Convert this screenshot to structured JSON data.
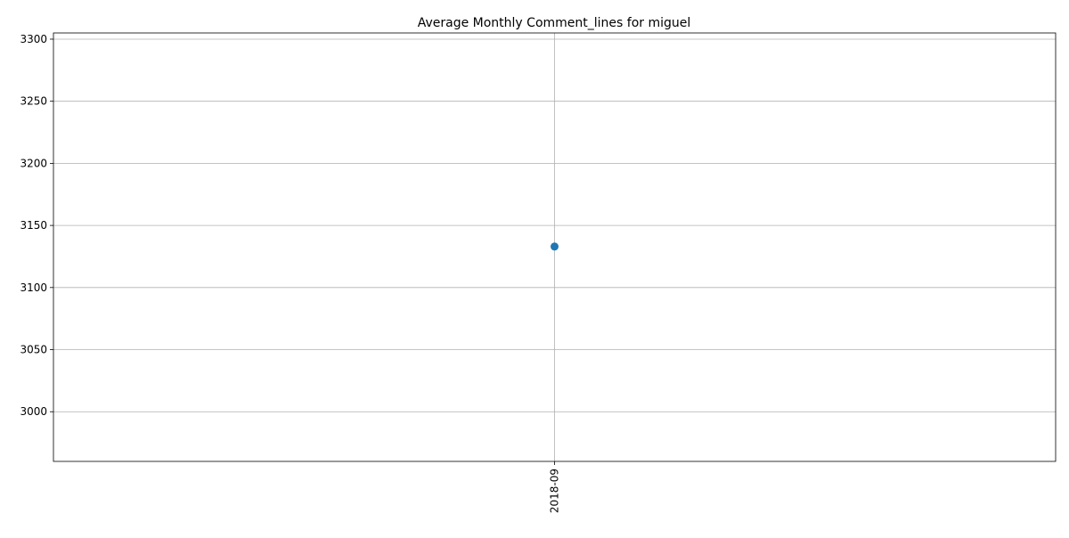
{
  "chart_data": {
    "type": "line",
    "title": "Average Monthly Comment_lines for miguel",
    "xlabel": "",
    "ylabel": "",
    "categories": [
      "2018-09"
    ],
    "series": [
      {
        "values": [
          3133
        ],
        "color": "#1f77b4",
        "marker": "circle"
      }
    ],
    "ylim": [
      2960,
      3305
    ],
    "yticks": [
      3000,
      3050,
      3100,
      3150,
      3200,
      3250,
      3300
    ],
    "xtick_rotation": "vertical",
    "grid": true,
    "legend": "none"
  }
}
